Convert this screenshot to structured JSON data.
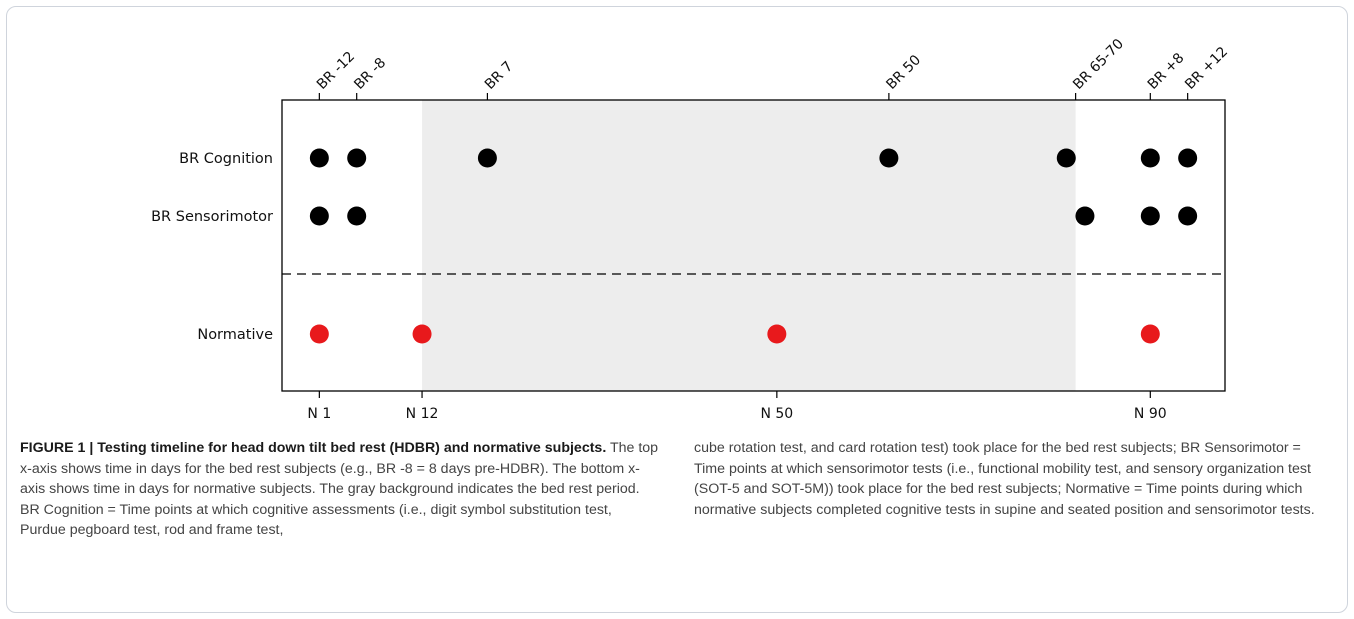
{
  "chart_data": {
    "type": "scatter",
    "top_axis_ticks": [
      "BR -12",
      "BR -8",
      "BR 7",
      "BR 50",
      "BR 65-70",
      "BR +8",
      "BR +12"
    ],
    "bottom_axis_ticks": [
      "N 1",
      "N 12",
      "N 50",
      "N 90"
    ],
    "rows": [
      "BR Cognition",
      "BR Sensorimotor",
      "Normative"
    ],
    "bed_rest_period": {
      "start_day": 12,
      "end_day": 82
    },
    "series": [
      {
        "name": "BR Cognition",
        "color": "#000000",
        "x": [
          1,
          5,
          19,
          62,
          81,
          90,
          94
        ]
      },
      {
        "name": "BR Sensorimotor",
        "color": "#000000",
        "x": [
          1,
          5,
          83,
          90,
          94
        ]
      },
      {
        "name": "Normative",
        "color": "#e8191c",
        "x": [
          1,
          12,
          50,
          90
        ]
      }
    ],
    "top_ticks_at": [
      1,
      5,
      19,
      62,
      82,
      90,
      94
    ],
    "bottom_ticks_at": [
      1,
      12,
      50,
      90
    ],
    "xlim": [
      -3,
      98
    ],
    "separator": "dashed",
    "shading_color": "#ededed"
  },
  "caption": {
    "label": "FIGURE 1 |",
    "title": "Testing timeline for head down tilt bed rest (HDBR) and normative subjects.",
    "left_text": "The top x-axis shows time in days for the bed rest subjects (e.g., BR -8 = 8 days pre-HDBR). The bottom x-axis shows time in days for normative subjects. The gray background indicates the bed rest period. BR Cognition = Time points at which cognitive assessments (i.e., digit symbol substitution test, Purdue pegboard test, rod and frame test,",
    "right_text": "cube rotation test, and card rotation test) took place for the bed rest subjects; BR Sensorimotor = Time points at which sensorimotor tests (i.e., functional mobility test, and sensory organization test (SOT-5 and SOT-5M)) took place for the bed rest subjects; Normative = Time points during which normative subjects completed cognitive tests in supine and seated position and sensorimotor tests."
  }
}
